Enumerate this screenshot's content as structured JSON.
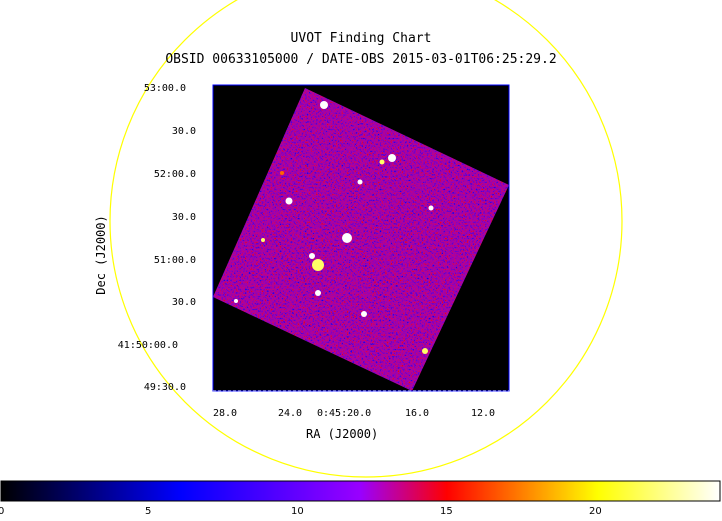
{
  "title": "UVOT Finding Chart",
  "subtitle": "OBSID 00633105000 / DATE-OBS 2015-03-01T06:25:29.2",
  "axes": {
    "xlabel": "RA (J2000)",
    "ylabel": "Dec (J2000)",
    "ra_ticks": [
      "28.0",
      "24.0",
      "0:45:20.0",
      "16.0",
      "12.0"
    ],
    "dec_ticks": [
      "53:00.0",
      "30.0",
      "52:00.0",
      "30.0",
      "51:00.0",
      "30.0",
      "41:50:00.0",
      "49:30.0"
    ]
  },
  "colorbar": {
    "ticks": [
      "0",
      "5",
      "10",
      "15",
      "20"
    ],
    "colors": [
      "#000000",
      "#0000ff",
      "#ff0000",
      "#ffff00",
      "#ffffff"
    ]
  },
  "circle_color": "#ffff00",
  "frame_color": "#0000ff"
}
